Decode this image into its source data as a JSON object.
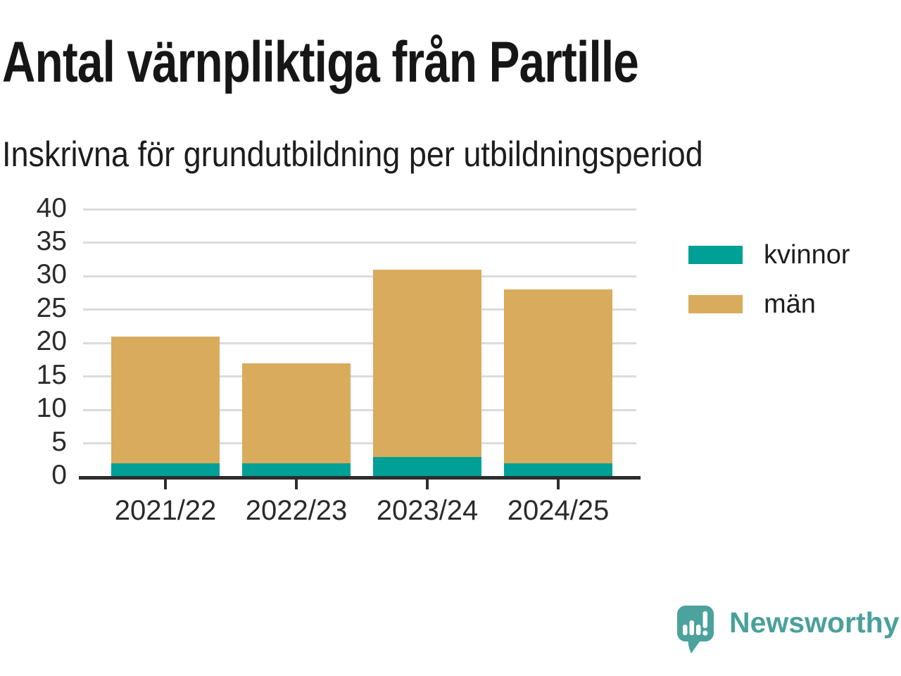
{
  "chart_data": {
    "type": "bar",
    "stacked": true,
    "title": "Antal värnpliktiga från Partille",
    "subtitle": "Inskrivna för grundutbildning per utbildningsperiod",
    "categories": [
      "2021/22",
      "2022/23",
      "2023/24",
      "2024/25"
    ],
    "series": [
      {
        "name": "kvinnor",
        "color": "#00a096",
        "values": [
          2,
          2,
          3,
          2
        ]
      },
      {
        "name": "män",
        "color": "#d9ab5c",
        "values": [
          19,
          15,
          28,
          26
        ]
      }
    ],
    "stack_totals": [
      21,
      17,
      31,
      28
    ],
    "ylim": [
      0,
      40
    ],
    "yticks": [
      0,
      5,
      10,
      15,
      20,
      25,
      30,
      35,
      40
    ],
    "grid": true,
    "legend_position": "right",
    "gridline_color": "#dcdcdc",
    "axis_line_color": "#2d2d2d",
    "text_color": "#1d1d1d"
  },
  "branding": {
    "logo_text": "Newsworthy",
    "logo_color": "#4aa09b",
    "icon": "newsworthy-speech-bubble-bar-chart-icon"
  }
}
